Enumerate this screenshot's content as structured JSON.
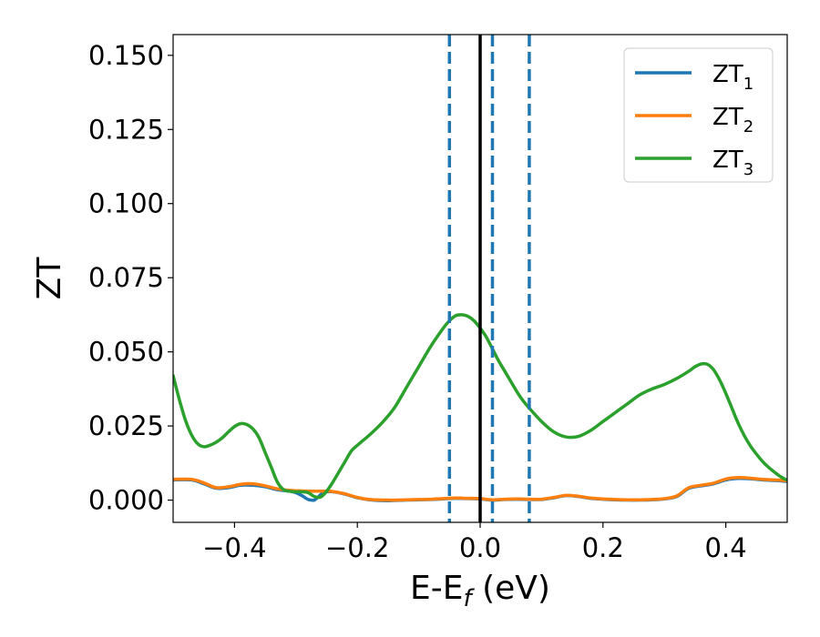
{
  "chart_data": {
    "type": "line",
    "title": "",
    "xlabel": {
      "main": "E-E",
      "sub": "f",
      "tail": " (eV)"
    },
    "ylabel": "ZT",
    "xlim": [
      -0.5,
      0.5
    ],
    "ylim": [
      -0.0075,
      0.157
    ],
    "xticks": [
      -0.4,
      -0.2,
      0.0,
      0.2,
      0.4
    ],
    "xtick_labels": [
      "−0.4",
      "−0.2",
      "0.0",
      "0.2",
      "0.4"
    ],
    "yticks": [
      0.0,
      0.025,
      0.05,
      0.075,
      0.1,
      0.125,
      0.15
    ],
    "ytick_labels": [
      "0.000",
      "0.025",
      "0.050",
      "0.075",
      "0.100",
      "0.125",
      "0.150"
    ],
    "grid": false,
    "legend_position": "top-right",
    "series": [
      {
        "name": "ZT",
        "sub": "1",
        "color": "#1f77b4",
        "x": [
          -0.5,
          -0.47,
          -0.45,
          -0.43,
          -0.41,
          -0.39,
          -0.37,
          -0.35,
          -0.33,
          -0.31,
          -0.3,
          -0.29,
          -0.285,
          -0.28,
          -0.275,
          -0.27,
          -0.265,
          -0.26,
          -0.255,
          -0.25,
          -0.24,
          -0.22,
          -0.2,
          -0.18,
          -0.15,
          -0.12,
          -0.1,
          -0.08,
          -0.06,
          -0.04,
          -0.02,
          0.0,
          0.02,
          0.04,
          0.06,
          0.08,
          0.1,
          0.12,
          0.14,
          0.16,
          0.18,
          0.2,
          0.22,
          0.24,
          0.26,
          0.28,
          0.3,
          0.32,
          0.34,
          0.36,
          0.38,
          0.4,
          0.42,
          0.44,
          0.46,
          0.48,
          0.5
        ],
        "y": [
          0.0068,
          0.0068,
          0.0055,
          0.004,
          0.0042,
          0.005,
          0.005,
          0.0045,
          0.0035,
          0.003,
          0.0025,
          0.0015,
          0.0008,
          0.0002,
          0.0,
          0.0,
          0.0008,
          0.0018,
          0.0025,
          0.0028,
          0.0028,
          0.002,
          0.0008,
          0.0001,
          -0.0002,
          0.0,
          0.0001,
          0.0002,
          0.0004,
          0.0006,
          0.0005,
          0.0004,
          0.0,
          0.0002,
          0.0003,
          0.0002,
          0.0002,
          0.0008,
          0.0015,
          0.0012,
          0.0006,
          0.0003,
          0.0001,
          0.0,
          0.0,
          0.0001,
          0.0004,
          0.0012,
          0.004,
          0.0048,
          0.0055,
          0.0068,
          0.0073,
          0.0072,
          0.0068,
          0.0066,
          0.0063
        ]
      },
      {
        "name": "ZT",
        "sub": "2",
        "color": "#ff7f0e",
        "x": [
          -0.5,
          -0.47,
          -0.45,
          -0.43,
          -0.41,
          -0.39,
          -0.37,
          -0.35,
          -0.33,
          -0.31,
          -0.29,
          -0.27,
          -0.25,
          -0.24,
          -0.22,
          -0.2,
          -0.18,
          -0.15,
          -0.12,
          -0.1,
          -0.08,
          -0.06,
          -0.04,
          -0.02,
          0.0,
          0.02,
          0.04,
          0.06,
          0.08,
          0.1,
          0.12,
          0.14,
          0.16,
          0.18,
          0.2,
          0.22,
          0.24,
          0.26,
          0.28,
          0.3,
          0.32,
          0.34,
          0.36,
          0.38,
          0.4,
          0.42,
          0.44,
          0.46,
          0.48,
          0.5
        ],
        "y": [
          0.007,
          0.007,
          0.0058,
          0.0042,
          0.0045,
          0.0053,
          0.0055,
          0.0048,
          0.0038,
          0.0033,
          0.0031,
          0.003,
          0.003,
          0.0029,
          0.0021,
          0.0009,
          0.0002,
          0.0,
          0.0001,
          0.0002,
          0.0003,
          0.0005,
          0.0007,
          0.0006,
          0.0005,
          0.0001,
          0.0003,
          0.0004,
          0.0003,
          0.0003,
          0.0009,
          0.0016,
          0.0013,
          0.0007,
          0.0004,
          0.0002,
          0.0001,
          0.0001,
          0.0002,
          0.0005,
          0.0014,
          0.0042,
          0.005,
          0.0057,
          0.0071,
          0.0076,
          0.0074,
          0.007,
          0.0068,
          0.0065
        ]
      },
      {
        "name": "ZT",
        "sub": "3",
        "color": "#2ca02c",
        "x": [
          -0.5,
          -0.49,
          -0.48,
          -0.47,
          -0.46,
          -0.45,
          -0.44,
          -0.43,
          -0.42,
          -0.41,
          -0.4,
          -0.39,
          -0.38,
          -0.37,
          -0.36,
          -0.35,
          -0.34,
          -0.33,
          -0.32,
          -0.31,
          -0.3,
          -0.29,
          -0.28,
          -0.27,
          -0.26,
          -0.25,
          -0.24,
          -0.23,
          -0.22,
          -0.21,
          -0.2,
          -0.18,
          -0.16,
          -0.14,
          -0.12,
          -0.1,
          -0.08,
          -0.06,
          -0.05,
          -0.04,
          -0.03,
          -0.02,
          -0.01,
          0.0,
          0.01,
          0.02,
          0.03,
          0.04,
          0.05,
          0.06,
          0.07,
          0.08,
          0.1,
          0.12,
          0.14,
          0.16,
          0.18,
          0.2,
          0.22,
          0.24,
          0.26,
          0.28,
          0.3,
          0.32,
          0.34,
          0.35,
          0.36,
          0.37,
          0.38,
          0.39,
          0.4,
          0.41,
          0.42,
          0.43,
          0.44,
          0.45,
          0.46,
          0.47,
          0.48,
          0.49,
          0.5
        ],
        "y": [
          0.042,
          0.034,
          0.027,
          0.022,
          0.019,
          0.018,
          0.0185,
          0.0195,
          0.021,
          0.023,
          0.0248,
          0.0258,
          0.0255,
          0.024,
          0.021,
          0.016,
          0.011,
          0.006,
          0.0035,
          0.003,
          0.0028,
          0.0028,
          0.0025,
          0.0012,
          0.001,
          0.003,
          0.006,
          0.0095,
          0.013,
          0.0165,
          0.0185,
          0.022,
          0.026,
          0.031,
          0.038,
          0.045,
          0.052,
          0.058,
          0.0605,
          0.0622,
          0.0625,
          0.062,
          0.0605,
          0.058,
          0.055,
          0.051,
          0.047,
          0.0435,
          0.04,
          0.0365,
          0.0335,
          0.031,
          0.0265,
          0.023,
          0.0213,
          0.0215,
          0.0235,
          0.0265,
          0.0295,
          0.0325,
          0.0355,
          0.0375,
          0.039,
          0.041,
          0.0435,
          0.045,
          0.0459,
          0.0458,
          0.044,
          0.0405,
          0.036,
          0.031,
          0.026,
          0.0218,
          0.0183,
          0.0155,
          0.013,
          0.011,
          0.0093,
          0.0078,
          0.0067
        ]
      }
    ],
    "vlines": [
      {
        "x": -0.05,
        "style": "dashed",
        "color": "#1f77b4"
      },
      {
        "x": 0.0,
        "style": "solid",
        "color": "#000000"
      },
      {
        "x": 0.02,
        "style": "dashed",
        "color": "#1f77b4"
      },
      {
        "x": 0.08,
        "style": "dashed",
        "color": "#1f77b4"
      }
    ]
  }
}
